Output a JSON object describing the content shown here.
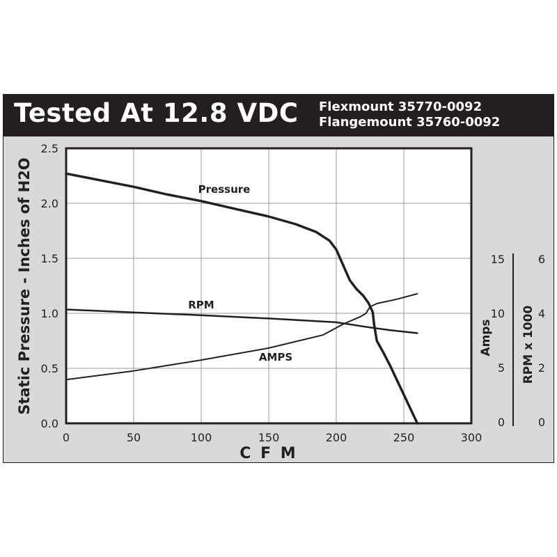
{
  "header": {
    "title": "Tested At 12.8 VDC",
    "models": [
      "Flexmount 35770-0092",
      "Flangemount 35760-0092"
    ]
  },
  "colors": {
    "header_bg": "#231f20",
    "panel_bg": "#d9d9d9",
    "plot_bg": "#ffffff",
    "line": "#231f20"
  },
  "chart_data": {
    "type": "line",
    "xlabel": "C F M",
    "ylabel": "Static Pressure - Inches of H2O",
    "xlim": [
      0,
      300
    ],
    "ylim": [
      0,
      2.5
    ],
    "x_ticks": [
      "0",
      "50",
      "100",
      "150",
      "200",
      "250",
      "300"
    ],
    "y_ticks": [
      "0.0",
      "0.5",
      "1.0",
      "1.5",
      "2.0",
      "2.5"
    ],
    "grid": true,
    "secondary_axes": [
      {
        "label": "Amps",
        "ticks": [
          "0",
          "5",
          "10",
          "15"
        ],
        "range": [
          0,
          15
        ]
      },
      {
        "label": "RPM x 1000",
        "ticks": [
          "0",
          "2",
          "4",
          "6"
        ],
        "range": [
          0,
          6
        ]
      }
    ],
    "series": [
      {
        "name": "Pressure",
        "axis": "pressure",
        "x": [
          0,
          25,
          50,
          75,
          100,
          125,
          150,
          170,
          185,
          195,
          200,
          205,
          210,
          215,
          220,
          224,
          227,
          228,
          230,
          235,
          240,
          245,
          250,
          255,
          260
        ],
        "y": [
          2.27,
          2.21,
          2.15,
          2.08,
          2.02,
          1.95,
          1.88,
          1.81,
          1.74,
          1.66,
          1.58,
          1.44,
          1.3,
          1.22,
          1.16,
          1.09,
          1.01,
          0.9,
          0.75,
          0.64,
          0.52,
          0.39,
          0.26,
          0.13,
          0.0
        ]
      },
      {
        "name": "RPM",
        "axis": "rpm",
        "x": [
          0,
          50,
          100,
          150,
          200,
          225,
          240,
          260
        ],
        "y": [
          4.14,
          4.03,
          3.93,
          3.81,
          3.67,
          3.48,
          3.38,
          3.27
        ]
      },
      {
        "name": "AMPS",
        "axis": "amps",
        "x": [
          0,
          50,
          100,
          150,
          190,
          205,
          218,
          222,
          225,
          230,
          245,
          260
        ],
        "y": [
          3.9,
          4.7,
          5.7,
          6.8,
          8.0,
          9.0,
          9.7,
          10.0,
          10.6,
          10.9,
          11.3,
          11.8
        ]
      }
    ]
  }
}
